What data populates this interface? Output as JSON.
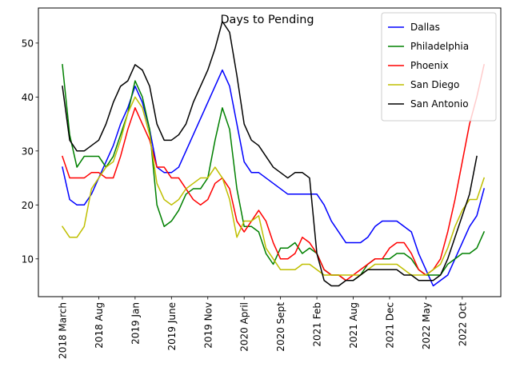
{
  "chart_data": {
    "type": "line",
    "title": "Days to Pending",
    "xlabel": "",
    "ylabel": "",
    "ylim": [
      3,
      56.5
    ],
    "y_ticks": [
      10,
      20,
      30,
      40,
      50
    ],
    "x_tick_labels": [
      "2018 March",
      "2018 Aug",
      "2019 Jan",
      "2019 June",
      "2019 Nov",
      "2020 April",
      "2020 Sept",
      "2021 Feb",
      "2021 Aug",
      "2021 Dec",
      "2022 May",
      "2022 Oct"
    ],
    "x_tick_positions": [
      0,
      5,
      10,
      15,
      20,
      25,
      30,
      35,
      40,
      45,
      50,
      55
    ],
    "x_range": [
      -3.3,
      60.3
    ],
    "grid": false,
    "legend_position": "top-right",
    "series": [
      {
        "name": "Dallas",
        "color": "#0000ff",
        "values": [
          27,
          21,
          20,
          20,
          22,
          25,
          28,
          31,
          35,
          38,
          42,
          39,
          34,
          27,
          26,
          26,
          27,
          30,
          33,
          36,
          39,
          42,
          45,
          42,
          35,
          28,
          26,
          26,
          25,
          24,
          23,
          22,
          22,
          22,
          22,
          22,
          20,
          17,
          15,
          13,
          13,
          13,
          14,
          16,
          17,
          17,
          17,
          16,
          15,
          11,
          8,
          5,
          6,
          7,
          10,
          13,
          16,
          18,
          23
        ]
      },
      {
        "name": "Philadelphia",
        "color": "#008000",
        "values": [
          46,
          33,
          27,
          29,
          29,
          29,
          27,
          29,
          33,
          37,
          43,
          40,
          34,
          20,
          16,
          17,
          19,
          22,
          23,
          23,
          25,
          32,
          38,
          34,
          23,
          16,
          16,
          15,
          11,
          9,
          12,
          12,
          13,
          11,
          12,
          11,
          8,
          7,
          7,
          6,
          6,
          7,
          9,
          10,
          10,
          10,
          11,
          11,
          10,
          8,
          7,
          7,
          7,
          9,
          10,
          11,
          11,
          12,
          15
        ]
      },
      {
        "name": "Phoenix",
        "color": "#ff0000",
        "values": [
          29,
          25,
          25,
          25,
          26,
          26,
          25,
          25,
          29,
          34,
          38,
          35,
          32,
          27,
          27,
          25,
          25,
          23,
          21,
          20,
          21,
          24,
          25,
          23,
          17,
          15,
          17,
          19,
          17,
          13,
          10,
          10,
          11,
          14,
          13,
          11,
          8,
          7,
          7,
          6,
          7,
          8,
          9,
          10,
          10,
          12,
          13,
          13,
          11,
          8,
          7,
          8,
          10,
          15,
          21,
          28,
          35,
          40,
          46
        ]
      },
      {
        "name": "San Diego",
        "color": "#bfbf00",
        "values": [
          16,
          14,
          14,
          16,
          23,
          25,
          27,
          28,
          32,
          37,
          40,
          38,
          33,
          24,
          21,
          20,
          21,
          23,
          24,
          25,
          25,
          27,
          25,
          21,
          14,
          17,
          17,
          18,
          12,
          10,
          8,
          8,
          8,
          9,
          9,
          8,
          7,
          7,
          7,
          7,
          7,
          7,
          8,
          9,
          9,
          9,
          9,
          8,
          7,
          7,
          7,
          8,
          9,
          12,
          16,
          19,
          21,
          21,
          25
        ]
      },
      {
        "name": "San Antonio",
        "color": "#000000",
        "values": [
          42,
          32,
          30,
          30,
          31,
          32,
          35,
          39,
          42,
          43,
          46,
          45,
          42,
          35,
          32,
          32,
          33,
          35,
          39,
          42,
          45,
          49,
          54,
          52,
          44,
          35,
          32,
          31,
          29,
          27,
          26,
          25,
          26,
          26,
          25,
          11,
          6,
          5,
          5,
          6,
          6,
          7,
          8,
          8,
          8,
          8,
          8,
          7,
          7,
          6,
          6,
          6,
          7,
          10,
          14,
          18,
          22,
          29
        ]
      }
    ]
  }
}
